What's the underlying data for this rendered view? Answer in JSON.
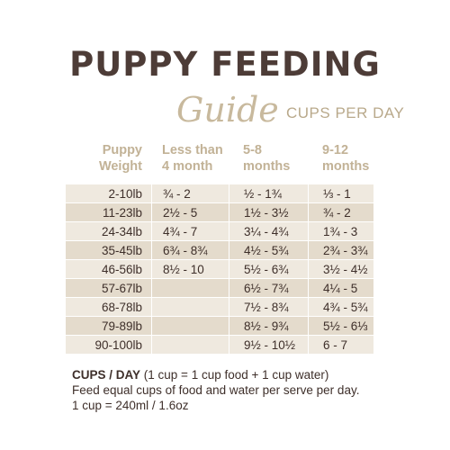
{
  "title": "PUPPY FEEDING",
  "subtitle_script": "Guide",
  "subtitle_unit": "CUPS PER DAY",
  "table": {
    "headers": {
      "weight": [
        "Puppy",
        "Weight"
      ],
      "c1": [
        "Less than",
        "4 month"
      ],
      "c2": [
        "5-8",
        "months"
      ],
      "c3": [
        "9-12",
        "months"
      ]
    },
    "rows": [
      {
        "weight": "2-10lb",
        "c1": "¾ - 2",
        "c2": "½ - 1¾",
        "c3": "⅓ - 1"
      },
      {
        "weight": "11-23lb",
        "c1": "2½ - 5",
        "c2": "1½ - 3½",
        "c3": "¾ - 2"
      },
      {
        "weight": "24-34lb",
        "c1": "4¾ - 7",
        "c2": "3¼ - 4¾",
        "c3": "1¾ - 3"
      },
      {
        "weight": "35-45lb",
        "c1": "6¾ - 8¾",
        "c2": "4½ - 5¾",
        "c3": "2¾ - 3¾"
      },
      {
        "weight": "46-56lb",
        "c1": "8½ - 10",
        "c2": "5½ - 6¾",
        "c3": "3½ - 4½"
      },
      {
        "weight": "57-67lb",
        "c1": "",
        "c2": "6½ - 7¾",
        "c3": "4¼ - 5"
      },
      {
        "weight": "68-78lb",
        "c1": "",
        "c2": "7½ - 8¾",
        "c3": "4¾ - 5¾"
      },
      {
        "weight": "79-89lb",
        "c1": "",
        "c2": "8½ - 9¾",
        "c3": "5½ - 6⅓"
      },
      {
        "weight": "90-100lb",
        "c1": "",
        "c2": "9½ - 10½",
        "c3": "6 - 7"
      }
    ]
  },
  "footer": {
    "bold": "CUPS / DAY",
    "line1_rest": " (1 cup = 1 cup food + 1 cup water)",
    "line2": "Feed equal cups of food and water per serve per day.",
    "line3": "1 cup = 240ml / 1.6oz"
  },
  "colors": {
    "title": "#4d3c37",
    "accent": "#c8b99d",
    "row_light": "#efe9df",
    "row_dark": "#e4dbcc"
  }
}
